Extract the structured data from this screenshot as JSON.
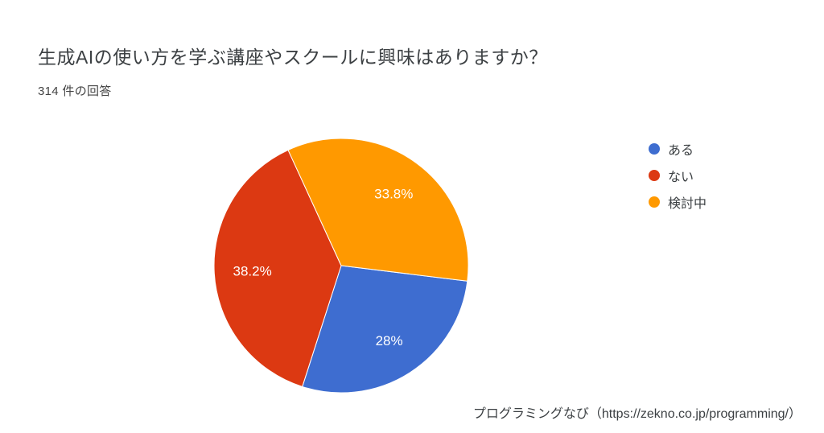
{
  "header": {
    "title": "生成AIの使い方を学ぶ講座やスクールに興味はありますか？",
    "subtitle": "314 件の回答"
  },
  "chart_data": {
    "type": "pie",
    "title": "生成AIの使い方を学ぶ講座やスクールに興味はありますか？",
    "responses_label": "314 件の回答",
    "slices": [
      {
        "label": "ある",
        "value": 28,
        "display": "28%",
        "color": "#3e6dd0"
      },
      {
        "label": "ない",
        "value": 38.2,
        "display": "38.2%",
        "color": "#dc3912"
      },
      {
        "label": "検討中",
        "value": 33.8,
        "display": "33.8%",
        "color": "#ff9900"
      }
    ],
    "start_angle_deg": 97,
    "legend_position": "right",
    "slice_label_color": "#ffffff",
    "background_color": "#ffffff"
  },
  "footer": {
    "credit": "プログラミングなび（https://zekno.co.jp/programming/）"
  }
}
